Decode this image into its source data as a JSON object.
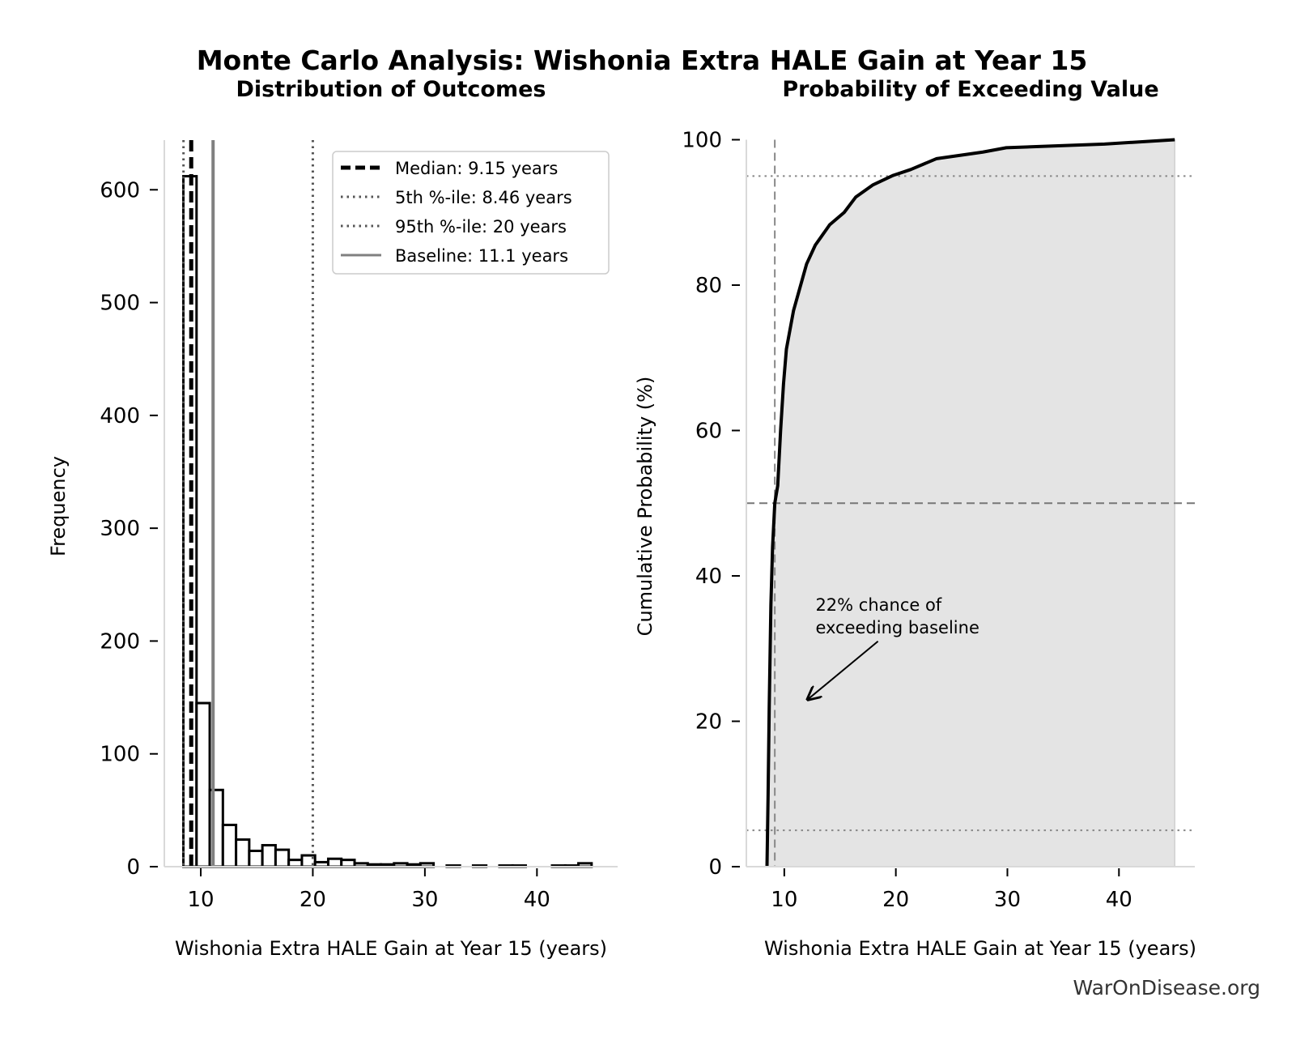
{
  "title": "Monte Carlo Analysis: Wishonia Extra HALE Gain at Year 15",
  "watermark": "WarOnDisease.org",
  "chart_data": [
    {
      "type": "bar",
      "subtype": "histogram",
      "title": "Distribution of Outcomes",
      "xlabel": "Wishonia Extra HALE Gain at Year 15 (years)",
      "ylabel": "Frequency",
      "xlim": [
        6.75,
        47.2
      ],
      "ylim": [
        0,
        644
      ],
      "xticks": [
        10,
        20,
        30,
        40
      ],
      "yticks": [
        0,
        100,
        200,
        300,
        400,
        500,
        600
      ],
      "bin_start": 8.45,
      "bin_width": 1.175,
      "counts": [
        612,
        145,
        68,
        37,
        24,
        14,
        19,
        15,
        6,
        10,
        4,
        7,
        6,
        3,
        2,
        2,
        3,
        2,
        3,
        0,
        1,
        0,
        1,
        0,
        1,
        1,
        0,
        0,
        1,
        1,
        3
      ],
      "grid": false,
      "legend_position": "top-right",
      "reference_lines": [
        {
          "label": "Median: 9.15 years",
          "x": 9.15,
          "style": "dashed",
          "color": "#000000"
        },
        {
          "label": "5th %-ile: 8.46 years",
          "x": 8.46,
          "style": "dotted",
          "color": "#555555"
        },
        {
          "label": "95th %-ile: 20 years",
          "x": 20,
          "style": "dotted",
          "color": "#555555"
        },
        {
          "label": "Baseline: 11.1 years",
          "x": 11.1,
          "style": "solid",
          "color": "#808080"
        }
      ]
    },
    {
      "type": "line",
      "subtype": "cumulative",
      "title": "Probability of Exceeding Value",
      "xlabel": "Wishonia Extra HALE Gain at Year 15 (years)",
      "ylabel": "Cumulative Probability (%)",
      "xlim": [
        6.6,
        46.8
      ],
      "ylim": [
        0,
        100
      ],
      "xticks": [
        10,
        20,
        30,
        40
      ],
      "yticks": [
        0,
        20,
        40,
        60,
        80,
        100
      ],
      "grid": false,
      "fill_color": "#e4e4e4",
      "x": [
        8.45,
        8.55,
        8.65,
        8.8,
        8.95,
        9.15,
        9.41,
        9.67,
        9.93,
        10.19,
        10.83,
        12.0,
        12.78,
        14.07,
        15.37,
        16.4,
        17.96,
        19.77,
        21.33,
        23.66,
        27.8,
        29.9,
        38.7,
        45.0
      ],
      "y": [
        0,
        10,
        22,
        36,
        44,
        50,
        52.4,
        60,
        66.4,
        71.2,
        76.5,
        82.9,
        85.5,
        88.3,
        90.0,
        92.1,
        93.8,
        95.1,
        95.9,
        97.4,
        98.3,
        98.9,
        99.4,
        100
      ],
      "hlines": [
        {
          "y": 95,
          "style": "dotted"
        },
        {
          "y": 50,
          "style": "dashed"
        },
        {
          "y": 5,
          "style": "dotted"
        }
      ],
      "vlines": [
        {
          "x": 9.15,
          "style": "dashed"
        }
      ],
      "annotation": {
        "lines": [
          "22% chance of",
          "exceeding baseline"
        ],
        "text_at": [
          12.8,
          35.2
        ],
        "arrow_from": [
          18.4,
          31
        ],
        "arrow_to": [
          12.1,
          23
        ]
      }
    }
  ]
}
